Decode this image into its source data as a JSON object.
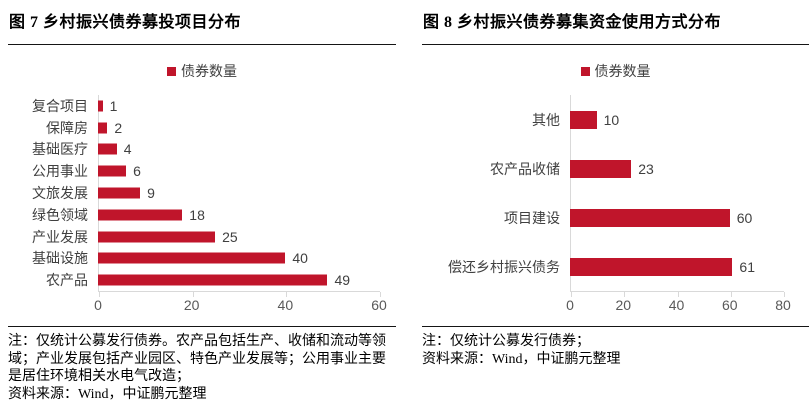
{
  "colors": {
    "bar": "#c0152b",
    "axis_line": "#d9d9d9",
    "tick_label": "#595959",
    "category_label": "#404040",
    "text": "#000000"
  },
  "chart_data": [
    {
      "type": "bar",
      "orientation": "horizontal",
      "title": "图 7 乡村振兴债券募投项目分布",
      "legend": [
        "债券数量"
      ],
      "legend_position": "top",
      "categories": [
        "复合项目",
        "保障房",
        "基础医疗",
        "公用事业",
        "文旅发展",
        "绿色领域",
        "产业发展",
        "基础设施",
        "农产品"
      ],
      "values": [
        1,
        2,
        4,
        6,
        9,
        18,
        25,
        40,
        49
      ],
      "xlim": [
        0,
        60
      ],
      "xticks": [
        0,
        20,
        40,
        60
      ],
      "bar_color": "#c0152b",
      "data_labels": true,
      "grid": false
    },
    {
      "type": "bar",
      "orientation": "horizontal",
      "title": "图 8 乡村振兴债券募集资金使用方式分布",
      "legend": [
        "债券数量"
      ],
      "legend_position": "top",
      "categories": [
        "其他",
        "农产品收储",
        "项目建设",
        "偿还乡村振兴债务"
      ],
      "values": [
        10,
        23,
        60,
        61
      ],
      "xlim": [
        0,
        80
      ],
      "xticks": [
        0,
        20,
        40,
        60,
        80
      ],
      "bar_color": "#c0152b",
      "data_labels": true,
      "grid": false
    }
  ],
  "notes": [
    {
      "note": "注：仅统计公募发行债券。农产品包括生产、收储和流动等领域；产业发展包括产业园区、特色产业发展等；公用事业主要是居住环境相关水电气改造；",
      "source": "资料来源：Wind，中证鹏元整理"
    },
    {
      "note": "注：仅统计公募发行债券；",
      "source": "资料来源：Wind，中证鹏元整理"
    }
  ]
}
